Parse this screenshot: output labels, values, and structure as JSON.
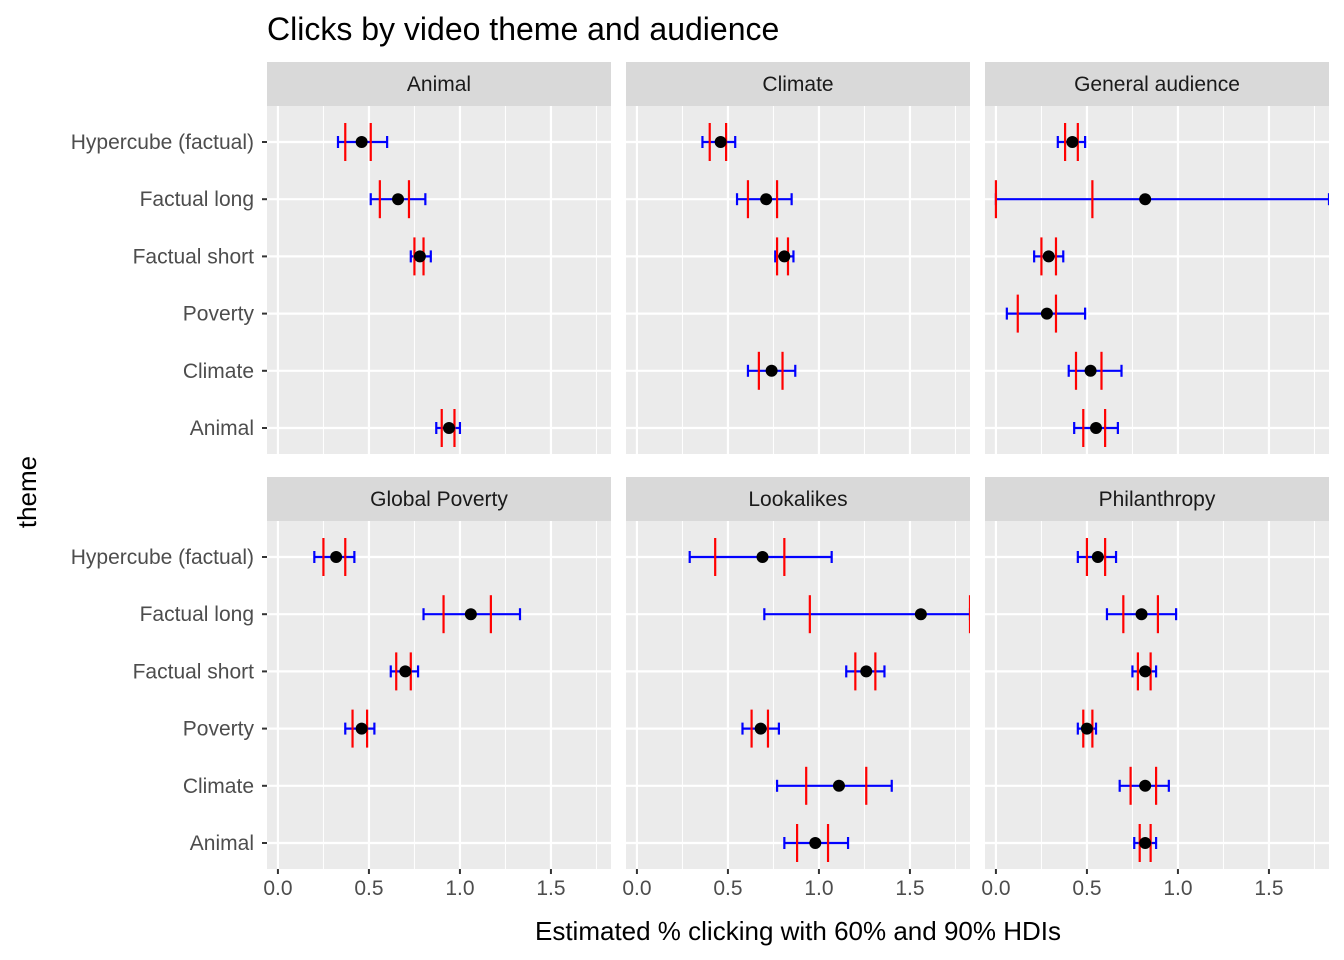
{
  "chart_data": {
    "type": "faceted-interval",
    "title": "Clicks by video theme and audience",
    "xlabel": "Estimated % clicking with 60% and 90% HDIs",
    "ylabel": "theme",
    "xlim": [
      -0.06,
      1.83
    ],
    "x_ticks": [
      0.0,
      0.5,
      1.0,
      1.5
    ],
    "x_tick_labels": [
      "0.0",
      "0.5",
      "1.0",
      "1.5"
    ],
    "categories": [
      "Hypercube (factual)",
      "Factual long",
      "Factual short",
      "Poverty",
      "Climate",
      "Animal"
    ],
    "grid": true,
    "colors": {
      "panel_bg": "#ebebeb",
      "strip_bg": "#d9d9d9",
      "grid": "#ffffff",
      "hdi90": "#0000ff",
      "hdi60": "#ff0000",
      "point": "#000000"
    },
    "facets": [
      {
        "name": "Animal",
        "rows": [
          {
            "theme": "Hypercube (factual)",
            "median": 0.46,
            "hdi60": [
              0.37,
              0.51
            ],
            "hdi90": [
              0.33,
              0.6
            ]
          },
          {
            "theme": "Factual long",
            "median": 0.66,
            "hdi60": [
              0.56,
              0.72
            ],
            "hdi90": [
              0.51,
              0.81
            ]
          },
          {
            "theme": "Factual short",
            "median": 0.78,
            "hdi60": [
              0.75,
              0.8
            ],
            "hdi90": [
              0.73,
              0.84
            ]
          },
          {
            "theme": "Animal",
            "median": 0.94,
            "hdi60": [
              0.9,
              0.97
            ],
            "hdi90": [
              0.87,
              1.0
            ]
          }
        ]
      },
      {
        "name": "Climate",
        "rows": [
          {
            "theme": "Hypercube (factual)",
            "median": 0.46,
            "hdi60": [
              0.4,
              0.49
            ],
            "hdi90": [
              0.36,
              0.54
            ]
          },
          {
            "theme": "Factual long",
            "median": 0.71,
            "hdi60": [
              0.61,
              0.77
            ],
            "hdi90": [
              0.55,
              0.85
            ]
          },
          {
            "theme": "Factual short",
            "median": 0.81,
            "hdi60": [
              0.77,
              0.83
            ],
            "hdi90": [
              0.76,
              0.86
            ]
          },
          {
            "theme": "Climate",
            "median": 0.74,
            "hdi60": [
              0.67,
              0.8
            ],
            "hdi90": [
              0.61,
              0.87
            ]
          }
        ]
      },
      {
        "name": "General audience",
        "rows": [
          {
            "theme": "Hypercube (factual)",
            "median": 0.42,
            "hdi60": [
              0.38,
              0.45
            ],
            "hdi90": [
              0.34,
              0.49
            ]
          },
          {
            "theme": "Factual long",
            "median": 0.82,
            "hdi60": [
              0.0,
              0.53
            ],
            "hdi90": [
              0.0,
              1.83
            ]
          },
          {
            "theme": "Factual short",
            "median": 0.29,
            "hdi60": [
              0.25,
              0.33
            ],
            "hdi90": [
              0.21,
              0.37
            ]
          },
          {
            "theme": "Poverty",
            "median": 0.28,
            "hdi60": [
              0.12,
              0.33
            ],
            "hdi90": [
              0.06,
              0.49
            ]
          },
          {
            "theme": "Climate",
            "median": 0.52,
            "hdi60": [
              0.44,
              0.58
            ],
            "hdi90": [
              0.4,
              0.69
            ]
          },
          {
            "theme": "Animal",
            "median": 0.55,
            "hdi60": [
              0.48,
              0.6
            ],
            "hdi90": [
              0.43,
              0.67
            ]
          }
        ]
      },
      {
        "name": "Global Poverty",
        "rows": [
          {
            "theme": "Hypercube (factual)",
            "median": 0.32,
            "hdi60": [
              0.25,
              0.37
            ],
            "hdi90": [
              0.2,
              0.42
            ]
          },
          {
            "theme": "Factual long",
            "median": 1.06,
            "hdi60": [
              0.91,
              1.17
            ],
            "hdi90": [
              0.8,
              1.33
            ]
          },
          {
            "theme": "Factual short",
            "median": 0.7,
            "hdi60": [
              0.65,
              0.73
            ],
            "hdi90": [
              0.62,
              0.77
            ]
          },
          {
            "theme": "Poverty",
            "median": 0.46,
            "hdi60": [
              0.41,
              0.49
            ],
            "hdi90": [
              0.37,
              0.53
            ]
          }
        ]
      },
      {
        "name": "Lookalikes",
        "rows": [
          {
            "theme": "Hypercube (factual)",
            "median": 0.69,
            "hdi60": [
              0.43,
              0.81
            ],
            "hdi90": [
              0.29,
              1.07
            ]
          },
          {
            "theme": "Factual long",
            "median": 1.56,
            "hdi60": [
              0.95,
              1.83
            ],
            "hdi90": [
              0.7,
              1.83
            ]
          },
          {
            "theme": "Factual short",
            "median": 1.26,
            "hdi60": [
              1.2,
              1.31
            ],
            "hdi90": [
              1.15,
              1.36
            ]
          },
          {
            "theme": "Poverty",
            "median": 0.68,
            "hdi60": [
              0.63,
              0.72
            ],
            "hdi90": [
              0.58,
              0.78
            ]
          },
          {
            "theme": "Climate",
            "median": 1.11,
            "hdi60": [
              0.93,
              1.26
            ],
            "hdi90": [
              0.77,
              1.4
            ]
          },
          {
            "theme": "Animal",
            "median": 0.98,
            "hdi60": [
              0.88,
              1.05
            ],
            "hdi90": [
              0.81,
              1.16
            ]
          }
        ]
      },
      {
        "name": "Philanthropy",
        "rows": [
          {
            "theme": "Hypercube (factual)",
            "median": 0.56,
            "hdi60": [
              0.5,
              0.6
            ],
            "hdi90": [
              0.45,
              0.66
            ]
          },
          {
            "theme": "Factual long",
            "median": 0.8,
            "hdi60": [
              0.7,
              0.89
            ],
            "hdi90": [
              0.61,
              0.99
            ]
          },
          {
            "theme": "Factual short",
            "median": 0.82,
            "hdi60": [
              0.78,
              0.85
            ],
            "hdi90": [
              0.75,
              0.88
            ]
          },
          {
            "theme": "Poverty",
            "median": 0.5,
            "hdi60": [
              0.48,
              0.53
            ],
            "hdi90": [
              0.45,
              0.55
            ]
          },
          {
            "theme": "Climate",
            "median": 0.82,
            "hdi60": [
              0.74,
              0.88
            ],
            "hdi90": [
              0.68,
              0.95
            ]
          },
          {
            "theme": "Animal",
            "median": 0.82,
            "hdi60": [
              0.79,
              0.85
            ],
            "hdi90": [
              0.76,
              0.88
            ]
          }
        ]
      }
    ]
  }
}
